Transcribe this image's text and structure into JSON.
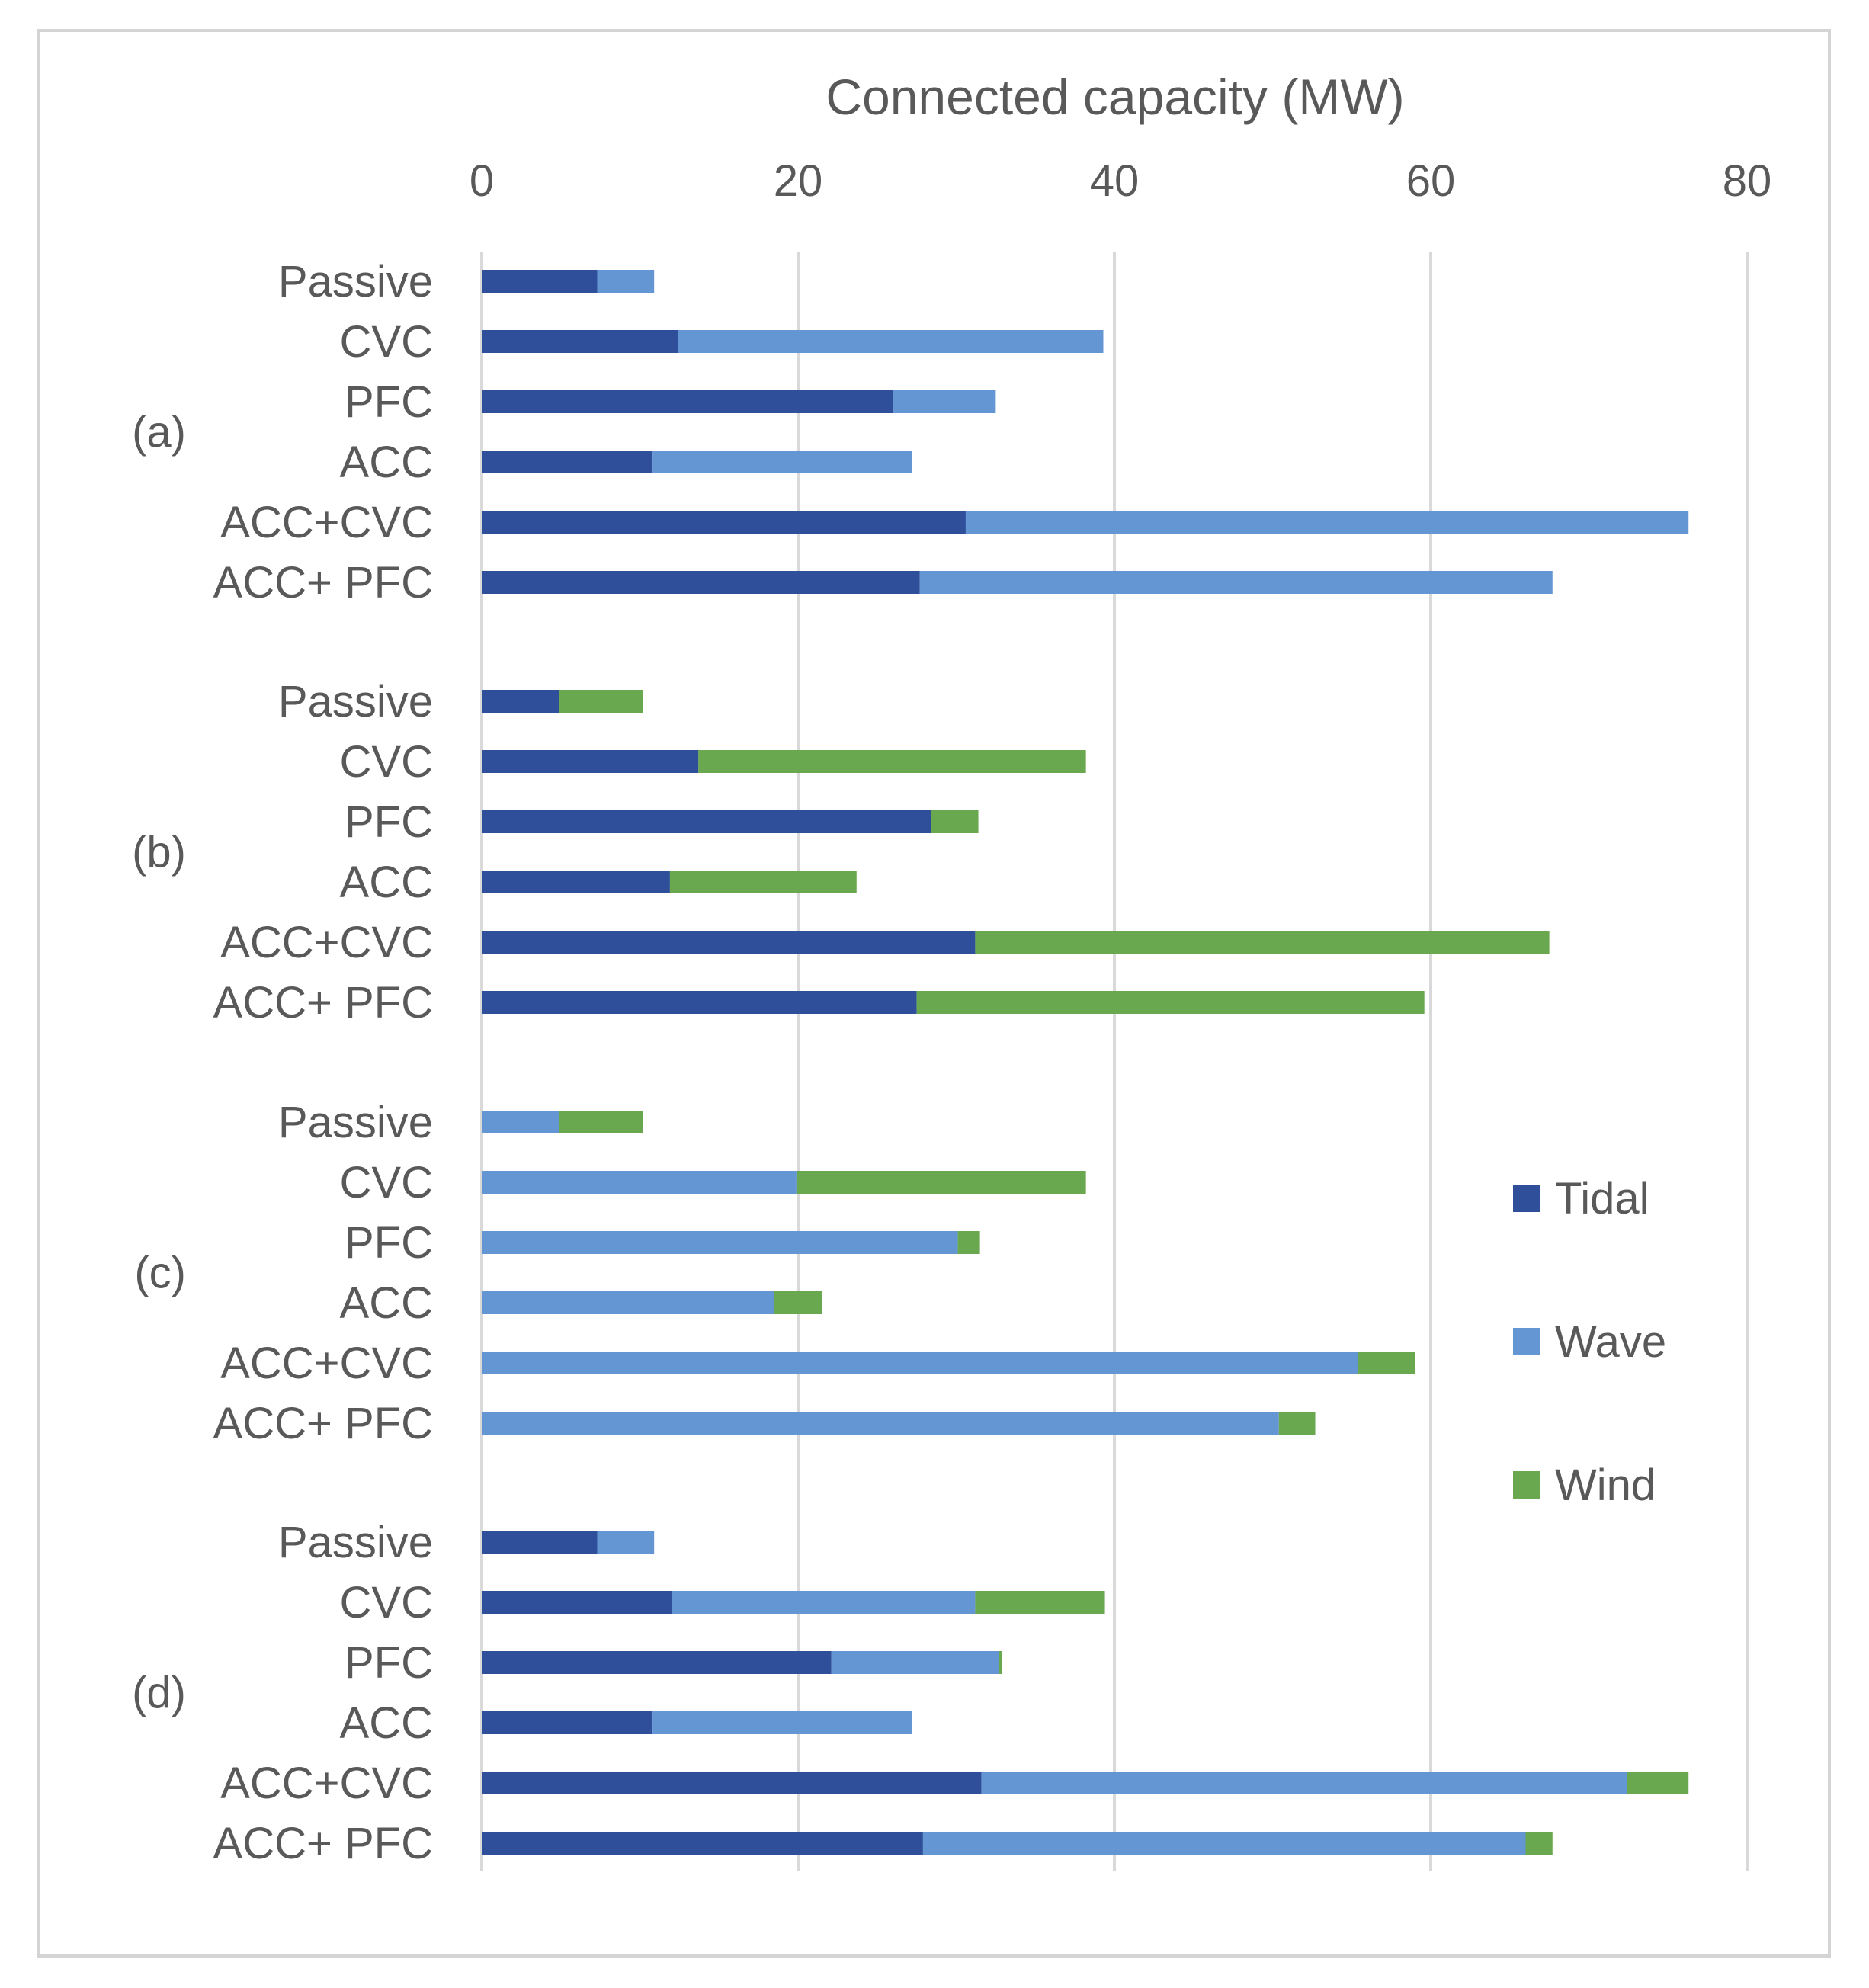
{
  "chart_data": {
    "type": "bar",
    "orientation": "horizontal",
    "stacked": true,
    "xlabel": "Connected capacity (MW)",
    "xlim": [
      0,
      80
    ],
    "xticks": [
      0,
      20,
      40,
      60,
      80
    ],
    "grid": true,
    "axis_position": "top",
    "legend_position": "right",
    "series": [
      {
        "name": "Tidal",
        "color": "#2f4f9a"
      },
      {
        "name": "Wave",
        "color": "#6396d2"
      },
      {
        "name": "Wind",
        "color": "#6aa84f"
      }
    ],
    "groups": [
      {
        "label": "(a)",
        "categories": [
          "Passive",
          "CVC",
          "PFC",
          "ACC",
          "ACC+CVC",
          "ACC+ PFC"
        ],
        "values": {
          "Tidal": [
            7.3,
            12.4,
            26.0,
            10.8,
            30.6,
            27.7
          ],
          "Wave": [
            3.6,
            26.9,
            6.5,
            16.4,
            45.7,
            40.0
          ],
          "Wind": [
            0,
            0,
            0,
            0,
            0,
            0
          ]
        }
      },
      {
        "label": "(b)",
        "categories": [
          "Passive",
          "CVC",
          "PFC",
          "ACC",
          "ACC+CVC",
          "ACC+ PFC"
        ],
        "values": {
          "Tidal": [
            4.9,
            13.7,
            28.4,
            11.9,
            31.2,
            27.5
          ],
          "Wave": [
            0,
            0,
            0,
            0,
            0,
            0
          ],
          "Wind": [
            5.3,
            24.5,
            3.0,
            11.8,
            36.3,
            32.1
          ]
        }
      },
      {
        "label": "(c)",
        "categories": [
          "Passive",
          "CVC",
          "PFC",
          "ACC",
          "ACC+CVC",
          "ACC+ PFC"
        ],
        "values": {
          "Tidal": [
            0,
            0,
            0,
            0,
            0,
            0
          ],
          "Wave": [
            4.9,
            19.9,
            30.1,
            18.5,
            55.4,
            50.4
          ],
          "Wind": [
            5.3,
            18.3,
            1.4,
            3.0,
            3.6,
            2.3
          ]
        }
      },
      {
        "label": "(d)",
        "categories": [
          "Passive",
          "CVC",
          "PFC",
          "ACC",
          "ACC+CVC",
          "ACC+ PFC"
        ],
        "values": {
          "Tidal": [
            7.3,
            12.0,
            22.1,
            10.8,
            31.6,
            27.9
          ],
          "Wave": [
            3.6,
            19.2,
            10.6,
            16.4,
            40.8,
            38.1
          ],
          "Wind": [
            0,
            8.2,
            0.2,
            0,
            3.9,
            1.7
          ]
        }
      }
    ]
  }
}
